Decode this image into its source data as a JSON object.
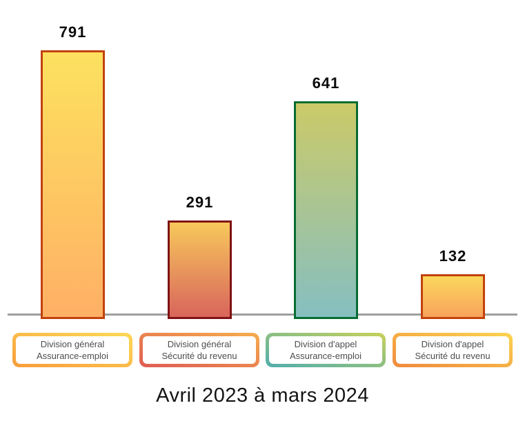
{
  "chart_data": {
    "type": "bar",
    "title": "Avril 2023 à mars 2024",
    "title_position": "bottom",
    "categories": [
      "Division général Assurance-emploi",
      "Division général Sécurité du revenu",
      "Division d'appel Assurance-emploi",
      "Division d'appel Sécurité du revenu"
    ],
    "values": [
      791,
      291,
      641,
      132
    ],
    "xlabel": "",
    "ylabel": "",
    "ylim": [
      0,
      800
    ],
    "grid": false,
    "legend": false,
    "axis_line_color": "#9e9e9e",
    "value_labels_shown": true
  },
  "bars": [
    {
      "value": "791",
      "label_line1": "Division général",
      "label_line2": "Assurance-emploi",
      "fill_top": "#FDE15F",
      "fill_bottom": "#FEB065",
      "border": "#C2410C",
      "box_gradient_start": "#FFDA57",
      "box_gradient_end": "#F79D3C"
    },
    {
      "value": "291",
      "label_line1": "Division général",
      "label_line2": "Sécurité du revenu",
      "fill_top": "#F7C85B",
      "fill_bottom": "#D9655C",
      "border": "#7F1114",
      "box_gradient_start": "#F6AE4E",
      "box_gradient_end": "#DF5B52"
    },
    {
      "value": "641",
      "label_line1": "Division d'appel",
      "label_line2": "Assurance-emploi",
      "fill_top": "#CBCA68",
      "fill_bottom": "#86BFC1",
      "border": "#076B31",
      "box_gradient_start": "#C8D15A",
      "box_gradient_end": "#4FAEAD"
    },
    {
      "value": "132",
      "label_line1": "Division d'appel",
      "label_line2": "Sécurité du revenu",
      "fill_top": "#FBD75C",
      "fill_bottom": "#F8A35C",
      "border": "#C2410C",
      "box_gradient_start": "#FCD54F",
      "box_gradient_end": "#EF8A3D"
    }
  ],
  "title": "Avril 2023 à mars 2024"
}
